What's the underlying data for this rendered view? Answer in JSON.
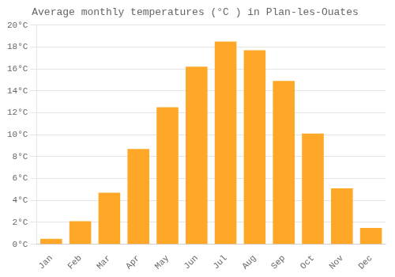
{
  "chart_data": {
    "type": "bar",
    "title": "Average monthly temperatures (°C ) in Plan-les-Ouates",
    "categories": [
      "Jan",
      "Feb",
      "Mar",
      "Apr",
      "May",
      "Jun",
      "Jul",
      "Aug",
      "Sep",
      "Oct",
      "Nov",
      "Dec"
    ],
    "values": [
      0.5,
      2.1,
      4.7,
      8.7,
      12.5,
      16.2,
      18.5,
      17.7,
      14.9,
      10.1,
      5.1,
      1.5
    ],
    "color": "#FFA726",
    "ylim": [
      0,
      20
    ],
    "yticks": [
      {
        "value": 0,
        "label": "0°C"
      },
      {
        "value": 2,
        "label": "2°C"
      },
      {
        "value": 4,
        "label": "4°C"
      },
      {
        "value": 6,
        "label": "6°C"
      },
      {
        "value": 8,
        "label": "8°C"
      },
      {
        "value": 10,
        "label": "10°C"
      },
      {
        "value": 12,
        "label": "12°C"
      },
      {
        "value": 14,
        "label": "14°C"
      },
      {
        "value": 16,
        "label": "16°C"
      },
      {
        "value": 18,
        "label": "18°C"
      },
      {
        "value": 20,
        "label": "20°C"
      }
    ],
    "grid": true
  }
}
